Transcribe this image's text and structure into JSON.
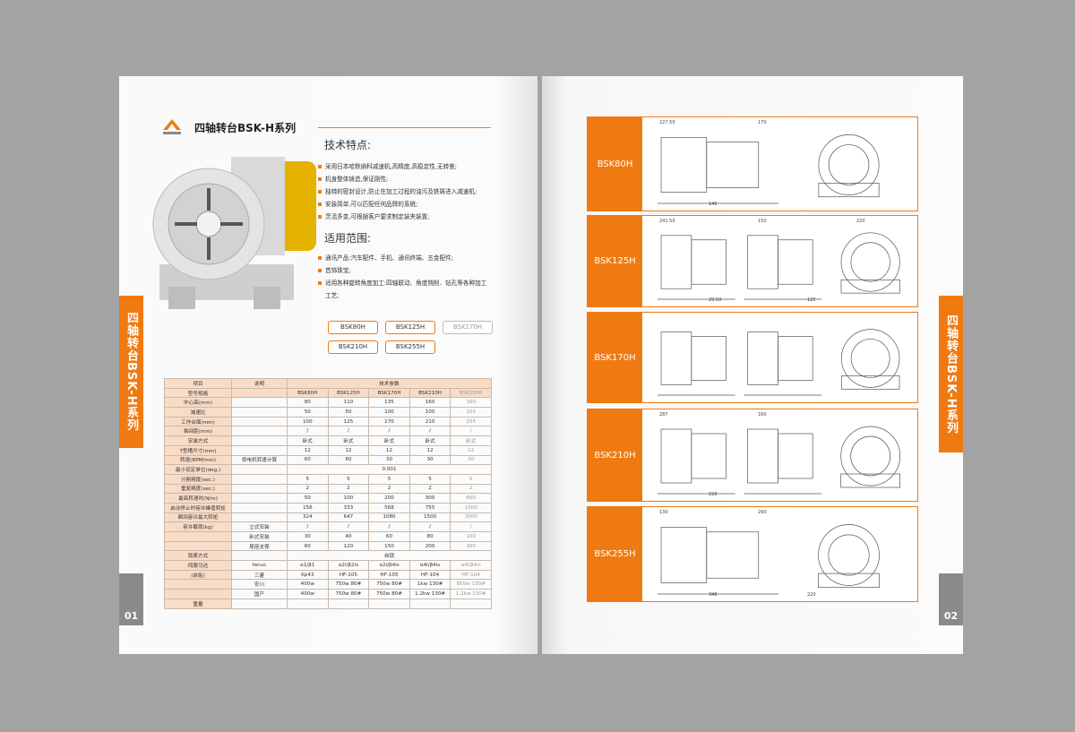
{
  "left": {
    "title": "四轴转台BSK-H系列",
    "features_heading": "技术特点:",
    "features": [
      "采用日本哈默纳科减速机,高精度,高稳定性,无转差;",
      "机身整体铸造,保证刚性;",
      "独特的密封设计,防止在加工过程的油污及铁屑进入减速机;",
      "安装简单,可以匹配任何品牌的系统;",
      "灵活多变,可根据客户要求制定装夹装置;"
    ],
    "scope_heading": "适用范围:",
    "scope": [
      "通讯产品:汽车配件、手机、通讯终端、五金配件;",
      "首饰珠宝;",
      "适用各种旋转角度加工:四轴联动、角度铣削、钻孔等各种加工",
      "工艺;"
    ],
    "models": [
      "BSK80H",
      "BSK125H",
      "BSK170H",
      "BSK210H",
      "BSK255H"
    ],
    "side_tab": "四轴转台BSK-H系列",
    "page_number": "01",
    "table": {
      "header": [
        "项目",
        "说明",
        "技术参数"
      ],
      "rows": [
        {
          "item": "型号规格",
          "note": null,
          "values": [
            "BSK80H",
            "BSK125H",
            "BSK170H",
            "BSK210H",
            "BSK255H"
          ]
        },
        {
          "item": "中心高(mm)",
          "note": null,
          "values": [
            "80",
            "110",
            "135",
            "160",
            "160"
          ]
        },
        {
          "item": "减速比",
          "note": null,
          "values": [
            "50",
            "50",
            "100",
            "100",
            "100"
          ]
        },
        {
          "item": "工作台面(mm)",
          "note": null,
          "values": [
            "100",
            "125",
            "170",
            "210",
            "255"
          ]
        },
        {
          "item": "轴间距(mm)",
          "note": null,
          "values": [
            "/",
            "/",
            "/",
            "/",
            "/"
          ]
        },
        {
          "item": "安装方式",
          "note": null,
          "values": [
            "卧式",
            "卧式",
            "卧式",
            "卧式",
            "卧式"
          ]
        },
        {
          "item": "T型槽尺寸(mm)",
          "note": null,
          "values": [
            "12",
            "12",
            "12",
            "12",
            "12"
          ]
        },
        {
          "item": "转速(RPM/min)",
          "note": "按电机转速计算",
          "values": [
            "60",
            "60",
            "30",
            "30",
            "30"
          ]
        },
        {
          "item": "最小设定单位(deg.)",
          "note": null,
          "values": [
            "0.001"
          ]
        },
        {
          "item": "分割精度(sec.)",
          "note": null,
          "values": [
            "5",
            "5",
            "5",
            "5",
            "5"
          ]
        },
        {
          "item": "重复精度(sec.)",
          "note": null,
          "values": [
            "2",
            "2",
            "2",
            "2",
            "2"
          ]
        },
        {
          "item": "最高转速时(N/m)",
          "note": null,
          "values": [
            "50",
            "100",
            "200",
            "300",
            "600"
          ]
        },
        {
          "item": "启动停止时容许峰值转矩",
          "note": null,
          "values": [
            "156",
            "333",
            "568",
            "755",
            "1500"
          ]
        },
        {
          "item": "瞬间容许最大转矩",
          "note": null,
          "values": [
            "324",
            "647",
            "1080",
            "1500",
            "3000"
          ]
        },
        {
          "item": "容许载荷(kg)",
          "note": "立式安装",
          "values": [
            "/",
            "/",
            "/",
            "/",
            "/"
          ]
        },
        {
          "item": null,
          "note": "卧式安装",
          "values": [
            "30",
            "40",
            "60",
            "80",
            "100"
          ]
        },
        {
          "item": null,
          "note": "尾座支撑",
          "values": [
            "60",
            "120",
            "150",
            "200",
            "300"
          ]
        },
        {
          "item": "锁紧方式",
          "note": null,
          "values": [
            "自锁"
          ]
        },
        {
          "item": "伺服马达",
          "note": "fanuc",
          "values": [
            "α1/β1",
            "α2i/β2is",
            "α2i/β4is",
            "α4i/β4is",
            "α4i/β4is"
          ]
        },
        {
          "item": "(自贴)",
          "note": "三菱",
          "values": [
            "Kp43",
            "HF-105",
            "HF-105",
            "HF-104",
            "HF-104"
          ]
        },
        {
          "item": null,
          "note": "安川",
          "values": [
            "400w",
            "750w 80#",
            "750w 80#",
            "1kw 130#",
            "850w 130#"
          ]
        },
        {
          "item": null,
          "note": "国产",
          "values": [
            "400w",
            "750w 80#",
            "750w 80#",
            "1.2kw 130#",
            "1.2kw 130#"
          ]
        },
        {
          "item": "重量",
          "note": null,
          "values": []
        }
      ]
    }
  },
  "right": {
    "rows": [
      {
        "label": "BSK80H",
        "dims": [
          "227.50",
          "146",
          "170"
        ]
      },
      {
        "label": "BSK125H",
        "dims": [
          "241.50",
          "29.50",
          "150",
          "125",
          "220"
        ]
      },
      {
        "label": "BSK170H",
        "dims": []
      },
      {
        "label": "BSK210H",
        "dims": [
          "287",
          "220",
          "160"
        ]
      },
      {
        "label": "BSK255H",
        "dims": [
          "130",
          "348",
          "290",
          "220"
        ]
      }
    ],
    "side_tab": "四轴转台BSK-H系列",
    "page_number": "02"
  }
}
